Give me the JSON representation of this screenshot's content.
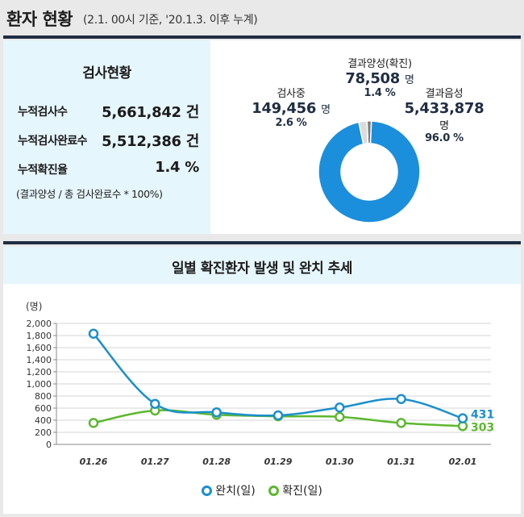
{
  "header": {
    "title": "환자 현황",
    "subtitle": "(2.1. 00시 기준, '20.1.3. 이후 누계)"
  },
  "stats": {
    "title": "검사현황",
    "rows": [
      {
        "label": "누적검사수",
        "value": "5,661,842 건"
      },
      {
        "label": "누적검사완료수",
        "value": "5,512,386 건"
      },
      {
        "label": "누적확진율",
        "value": "1.4 %"
      }
    ],
    "note": "(결과양성 / 총 검사완료수 * 100%)"
  },
  "donut": {
    "segments": [
      {
        "name": "결과음성",
        "value": "5,433,878",
        "unit": "명",
        "pct": "96.0 %",
        "pct_value": 96.0,
        "color": "#1b8fdb"
      },
      {
        "name": "결과양성(확진)",
        "value": "78,508",
        "unit": "명",
        "pct": "1.4 %",
        "pct_value": 1.4,
        "color": "#7d7d7d"
      },
      {
        "name": "검사중",
        "value": "149,456",
        "unit": "명",
        "pct": "2.6 %",
        "pct_value": 2.6,
        "color": "#dcdcdc"
      }
    ]
  },
  "chart_data": {
    "type": "line",
    "title": "일별 확진환자 발생 및 완치 추세",
    "ylabel": "(명)",
    "x": [
      "01.26",
      "01.27",
      "01.28",
      "01.29",
      "01.30",
      "01.31",
      "02.01"
    ],
    "ylim": [
      0,
      2000
    ],
    "yticks": [
      "0",
      "200",
      "400",
      "600",
      "800",
      "1,000",
      "1,200",
      "1,400",
      "1,600",
      "1,800",
      "2,000"
    ],
    "grid": true,
    "legend": "bottom",
    "series": [
      {
        "name": "완치(일)",
        "values": [
          1830,
          670,
          530,
          480,
          610,
          750,
          431
        ],
        "color": "#1b8fcb",
        "end_label": "431"
      },
      {
        "name": "확진(일)",
        "values": [
          355,
          560,
          490,
          465,
          455,
          355,
          303
        ],
        "color": "#5cb82e",
        "end_label": "303"
      }
    ]
  }
}
